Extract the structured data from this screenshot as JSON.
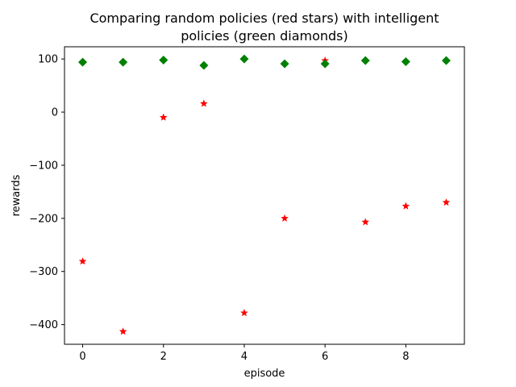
{
  "chart_data": {
    "type": "scatter",
    "title_lines": [
      "Comparing random policies (red stars) with intelligent",
      "policies (green diamonds)"
    ],
    "xlabel": "episode",
    "ylabel": "rewards",
    "xlim": [
      -0.45,
      9.45
    ],
    "ylim": [
      -437,
      123
    ],
    "xticks": [
      0,
      2,
      4,
      6,
      8
    ],
    "yticks": [
      100,
      0,
      -100,
      -200,
      -300,
      -400
    ],
    "xtick_labels": [
      "0",
      "2",
      "4",
      "6",
      "8"
    ],
    "ytick_labels": [
      "100",
      "0",
      "−100",
      "−200",
      "−300",
      "−400"
    ],
    "grid": false,
    "series": [
      {
        "marker": "star",
        "color": "#ff0000",
        "x": [
          0,
          1,
          2,
          3,
          4,
          5,
          6,
          7,
          8,
          9
        ],
        "y": [
          -281,
          -413,
          -10,
          16,
          -378,
          -200,
          97,
          -207,
          -177,
          -170
        ]
      },
      {
        "marker": "diamond",
        "color": "#008000",
        "x": [
          0,
          1,
          2,
          3,
          4,
          5,
          6,
          7,
          8,
          9
        ],
        "y": [
          94,
          94,
          98,
          88,
          100,
          91,
          91,
          97,
          95,
          97
        ]
      }
    ]
  }
}
